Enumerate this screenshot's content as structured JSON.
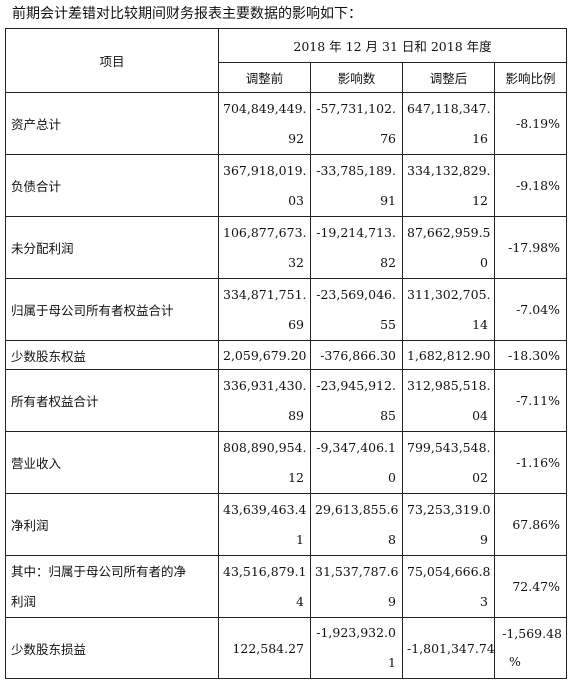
{
  "intro": "前期会计差错对比较期间财务报表主要数据的影响如下：",
  "header": {
    "item": "项目",
    "period": "2018 年 12 月 31 日和 2018 年度",
    "before": "调整前",
    "impact": "影响数",
    "after": "调整后",
    "ratio": "影响比例"
  },
  "rows": [
    {
      "label": "资产总计",
      "before": [
        "704,849,449.",
        "92"
      ],
      "impact": [
        "-57,731,102.",
        "76"
      ],
      "after": [
        "647,118,347.",
        "16"
      ],
      "ratio": "-8.19%"
    },
    {
      "label": "负债合计",
      "before": [
        "367,918,019.",
        "03"
      ],
      "impact": [
        "-33,785,189.",
        "91"
      ],
      "after": [
        "334,132,829.",
        "12"
      ],
      "ratio": "-9.18%"
    },
    {
      "label": "未分配利润",
      "before": [
        "106,877,673.",
        "32"
      ],
      "impact": [
        "-19,214,713.",
        "82"
      ],
      "after": [
        "87,662,959.5",
        "0"
      ],
      "ratio": "-17.98%"
    },
    {
      "label": "归属于母公司所有者权益合计",
      "before": [
        "334,871,751.",
        "69"
      ],
      "impact": [
        "-23,569,046.",
        "55"
      ],
      "after": [
        "311,302,705.",
        "14"
      ],
      "ratio": "-7.04%"
    },
    {
      "label": "少数股东权益",
      "before": "2,059,679.20",
      "impact": "-376,866.30",
      "after": "1,682,812.90",
      "ratio": "-18.30%"
    },
    {
      "label": "所有者权益合计",
      "before": [
        "336,931,430.",
        "89"
      ],
      "impact": [
        "-23,945,912.",
        "85"
      ],
      "after": [
        "312,985,518.",
        "04"
      ],
      "ratio": "-7.11%"
    },
    {
      "label": "营业收入",
      "before": [
        "808,890,954.",
        "12"
      ],
      "impact": [
        "-9,347,406.1",
        "0"
      ],
      "after": [
        "799,543,548.",
        "02"
      ],
      "ratio": "-1.16%"
    },
    {
      "label": "净利润",
      "before": [
        "43,639,463.4",
        "1"
      ],
      "impact": [
        "29,613,855.6",
        "8"
      ],
      "after": [
        "73,253,319.0",
        "9"
      ],
      "ratio": "67.86%"
    },
    {
      "label": [
        "其中：归属于母公司所有者的净",
        "利润"
      ],
      "before": [
        "43,516,879.1",
        "4"
      ],
      "impact": [
        "31,537,787.6",
        "9"
      ],
      "after": [
        "75,054,666.8",
        "3"
      ],
      "ratio": "72.47%"
    },
    {
      "label": "少数股东损益",
      "before": "122,584.27",
      "impact": [
        "-1,923,932.0",
        "1"
      ],
      "after": "-1,801,347.74",
      "ratio": [
        "-1,569.48",
        "%"
      ]
    }
  ]
}
